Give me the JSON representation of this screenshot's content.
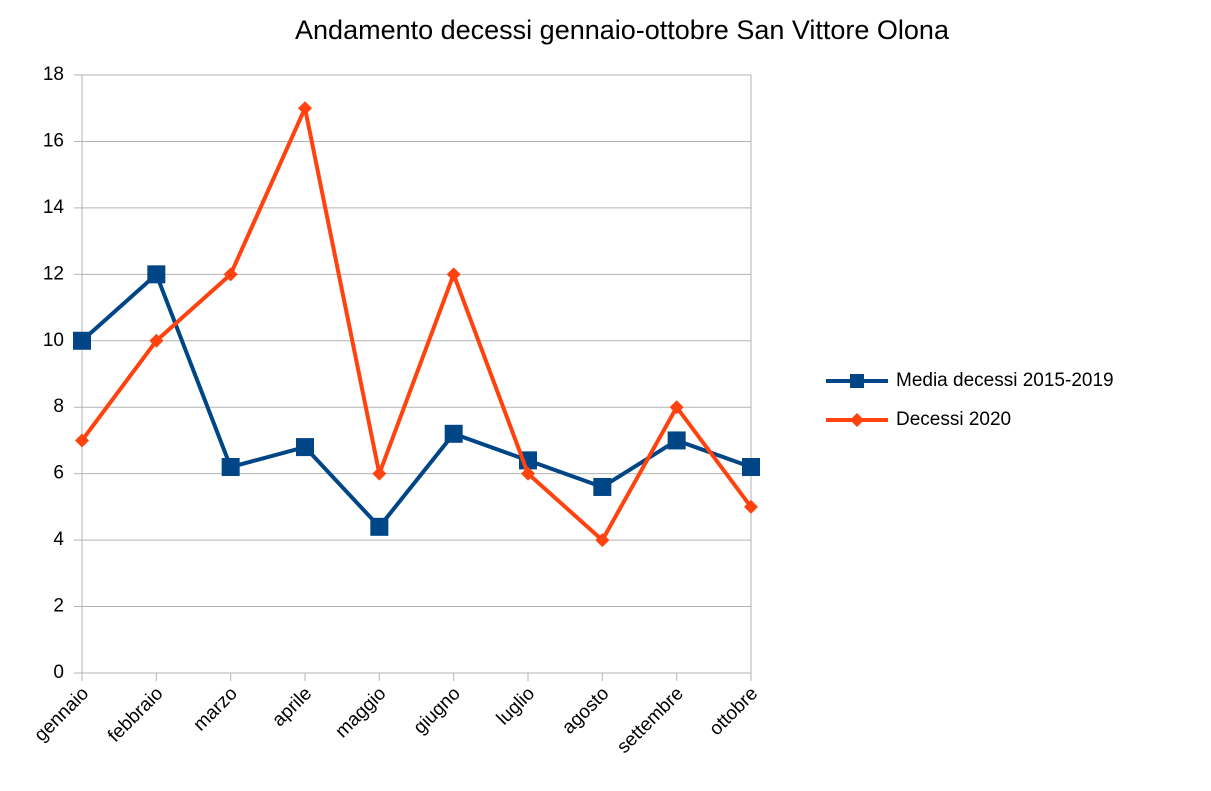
{
  "chart_data": {
    "type": "line",
    "title": "Andamento decessi gennaio-ottobre San Vittore Olona",
    "categories": [
      "gennaio",
      "febbraio",
      "marzo",
      "aprile",
      "maggio",
      "giugno",
      "luglio",
      "agosto",
      "settembre",
      "ottobre"
    ],
    "series": [
      {
        "name": "Media decessi 2015-2019",
        "color": "#004586",
        "marker": "square",
        "values": [
          10,
          12,
          6.2,
          6.8,
          4.4,
          7.2,
          6.4,
          5.6,
          7,
          6.2
        ]
      },
      {
        "name": "Decessi 2020",
        "color": "#ff420e",
        "marker": "diamond",
        "values": [
          7,
          10,
          12,
          17,
          6,
          12,
          6,
          4,
          8,
          5
        ]
      }
    ],
    "ylim": [
      0,
      18
    ],
    "yticks": [
      0,
      2,
      4,
      6,
      8,
      10,
      12,
      14,
      16,
      18
    ],
    "grid": true,
    "legend": "right"
  }
}
